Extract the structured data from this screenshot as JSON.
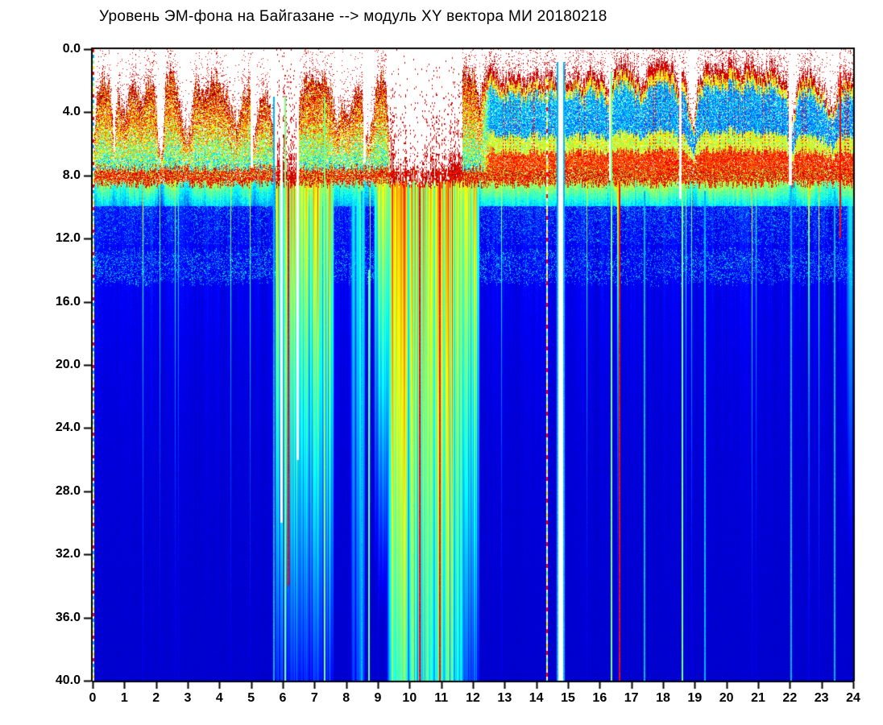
{
  "title": "Уровень ЭМ-фона на Байгазане  -->  модуль XY вектора МИ  20180218",
  "chart_data": {
    "type": "heatmap",
    "title": "Уровень ЭМ-фона на Байгазане  -->  модуль XY вектора МИ  20180218",
    "station": "Байгазан",
    "date_label": "20180218",
    "colormap": "jet",
    "background": "#ffffff",
    "x_axis": {
      "range": [
        0,
        24
      ],
      "tick_step": 1,
      "ticks": [
        "0",
        "1",
        "2",
        "3",
        "4",
        "5",
        "6",
        "7",
        "8",
        "9",
        "10",
        "11",
        "12",
        "13",
        "14",
        "15",
        "16",
        "17",
        "18",
        "19",
        "20",
        "21",
        "22",
        "23",
        "24"
      ]
    },
    "y_axis": {
      "range": [
        0,
        40
      ],
      "tick_step": 4,
      "ticks": [
        "0.0",
        "4.0",
        "8.0",
        "12.0",
        "16.0",
        "20.0",
        "24.0",
        "28.0",
        "32.0",
        "36.0",
        "40.0"
      ]
    },
    "features": {
      "surface_band_top": 7.55,
      "surface_band_bottom": 8.55,
      "env_profile": [
        [
          0,
          8.2
        ],
        [
          0.12,
          3.5
        ],
        [
          0.3,
          2.0
        ],
        [
          0.55,
          2.5
        ],
        [
          0.68,
          5.5
        ],
        [
          0.8,
          3.0
        ],
        [
          1.0,
          4.2
        ],
        [
          1.25,
          2.2
        ],
        [
          1.55,
          3.2
        ],
        [
          1.8,
          2.0
        ],
        [
          2.0,
          3.0
        ],
        [
          2.08,
          6.5
        ],
        [
          2.2,
          6.8
        ],
        [
          2.3,
          2.2
        ],
        [
          2.6,
          1.7
        ],
        [
          2.85,
          4.8
        ],
        [
          3.05,
          5.2
        ],
        [
          3.25,
          2.2
        ],
        [
          3.6,
          2.6
        ],
        [
          3.9,
          1.9
        ],
        [
          4.2,
          2.8
        ],
        [
          4.55,
          4.6
        ],
        [
          4.75,
          3.0
        ],
        [
          4.95,
          2.2
        ],
        [
          5.1,
          5.8
        ],
        [
          5.3,
          2.6
        ],
        [
          5.55,
          3.2
        ],
        [
          5.75,
          6.2
        ],
        [
          5.85,
          6.6
        ],
        [
          6.4,
          6.4
        ],
        [
          6.55,
          2.8
        ],
        [
          6.8,
          1.8
        ],
        [
          7.1,
          2.2
        ],
        [
          7.35,
          1.6
        ],
        [
          7.55,
          3.0
        ],
        [
          7.7,
          4.6
        ],
        [
          7.9,
          3.4
        ],
        [
          8.15,
          4.2
        ],
        [
          8.3,
          2.2
        ],
        [
          8.5,
          3.0
        ],
        [
          8.62,
          5.6
        ],
        [
          8.8,
          5.2
        ],
        [
          9.0,
          2.0
        ],
        [
          9.25,
          1.6
        ],
        [
          9.4,
          7.0
        ],
        [
          9.6,
          7.4
        ],
        [
          10.2,
          6.8
        ],
        [
          10.5,
          5.8
        ],
        [
          10.8,
          6.2
        ],
        [
          11.1,
          5.4
        ],
        [
          11.35,
          4.6
        ],
        [
          11.55,
          2.6
        ],
        [
          11.7,
          1.2
        ],
        [
          12.1,
          1.6
        ],
        [
          12.2,
          3.6
        ],
        [
          12.35,
          1.8
        ],
        [
          12.6,
          1.4
        ],
        [
          13.0,
          2.2
        ],
        [
          13.3,
          1.6
        ],
        [
          13.6,
          2.4
        ],
        [
          13.9,
          1.6
        ],
        [
          14.2,
          2.0
        ],
        [
          14.45,
          1.4
        ],
        [
          14.68,
          2.2
        ],
        [
          14.78,
          8.2
        ],
        [
          14.9,
          2.0
        ],
        [
          15.2,
          1.5
        ],
        [
          15.5,
          2.2
        ],
        [
          15.8,
          1.4
        ],
        [
          16.1,
          2.0
        ],
        [
          16.3,
          3.2
        ],
        [
          16.45,
          1.2
        ],
        [
          16.8,
          0.9
        ],
        [
          17.1,
          1.6
        ],
        [
          17.35,
          2.6
        ],
        [
          17.6,
          1.1
        ],
        [
          18.0,
          0.8
        ],
        [
          18.3,
          1.3
        ],
        [
          18.5,
          2.4
        ],
        [
          18.65,
          1.6
        ],
        [
          18.85,
          3.8
        ],
        [
          19.0,
          4.6
        ],
        [
          19.15,
          1.8
        ],
        [
          19.4,
          1.0
        ],
        [
          19.8,
          1.4
        ],
        [
          20.1,
          0.9
        ],
        [
          20.5,
          1.3
        ],
        [
          20.8,
          0.8
        ],
        [
          21.1,
          1.5
        ],
        [
          21.4,
          1.1
        ],
        [
          21.7,
          1.6
        ],
        [
          21.95,
          2.8
        ],
        [
          22.1,
          5.0
        ],
        [
          22.25,
          2.0
        ],
        [
          22.6,
          1.6
        ],
        [
          22.9,
          2.2
        ],
        [
          23.15,
          2.8
        ],
        [
          23.35,
          4.2
        ],
        [
          23.55,
          2.0
        ],
        [
          23.8,
          1.6
        ],
        [
          24.0,
          2.2
        ]
      ],
      "blue_core_profile": [
        [
          0,
          0
        ],
        [
          12.25,
          0
        ],
        [
          12.55,
          0.85
        ],
        [
          24,
          0.9
        ]
      ],
      "midband_12_15_profile": [
        [
          0,
          0.8
        ],
        [
          1.9,
          0.85
        ],
        [
          2.2,
          0.45
        ],
        [
          3,
          0.8
        ],
        [
          5.5,
          0.8
        ],
        [
          7,
          0.45
        ],
        [
          8.8,
          0.9
        ],
        [
          9.35,
          0.9
        ],
        [
          9.5,
          0
        ],
        [
          11.7,
          0
        ],
        [
          12.1,
          0.85
        ],
        [
          14,
          0.7
        ],
        [
          15,
          0.65
        ],
        [
          17,
          0.5
        ],
        [
          19,
          0.6
        ],
        [
          19.6,
          0.85
        ],
        [
          20.4,
          0.85
        ],
        [
          21.2,
          0.45
        ],
        [
          22.3,
          0.6
        ],
        [
          23,
          0.7
        ],
        [
          24,
          0.75
        ]
      ],
      "storm_top_intervals": [
        [
          5.8,
          6.44
        ],
        [
          9.38,
          11.66
        ]
      ],
      "deep_disturbances": [
        [
          5.82,
          6.45,
          0.95,
          0.022
        ],
        [
          6.5,
          7.55,
          0.9,
          0.022
        ],
        [
          8.2,
          8.55,
          0.55,
          0.015
        ],
        [
          8.95,
          9.38,
          0.85,
          0.03
        ],
        [
          9.38,
          11.66,
          1.0,
          0.0115
        ],
        [
          11.66,
          12.15,
          0.85,
          0.02
        ],
        [
          23.85,
          24.0,
          0.5,
          0.03
        ]
      ],
      "white_gaps": [
        [
          0.66,
          0.72,
          0.7,
          6.5
        ],
        [
          4.98,
          5.06,
          0.7,
          7.5
        ],
        [
          5.74,
          5.81,
          0.7,
          7.4
        ],
        [
          5.93,
          6.0,
          1.5,
          30
        ],
        [
          6.44,
          6.5,
          1.5,
          26
        ],
        [
          8.55,
          8.62,
          1.0,
          7.2
        ],
        [
          14.7,
          14.86,
          0.7,
          40
        ],
        [
          16.29,
          16.35,
          0.7,
          8.3
        ],
        [
          18.5,
          18.58,
          0.7,
          9.5
        ],
        [
          21.97,
          22.06,
          0.7,
          8.6
        ]
      ],
      "vlines": [
        [
          5.73,
          "cyan",
          3,
          40,
          "solid"
        ],
        [
          6.08,
          "green",
          3,
          40,
          "solid"
        ],
        [
          6.18,
          "red",
          8.4,
          34,
          "solid"
        ],
        [
          7.32,
          "green",
          3,
          40,
          "solid"
        ],
        [
          8.5,
          "cyan",
          9,
          40,
          "solid"
        ],
        [
          8.72,
          "green",
          14,
          40,
          "solid"
        ],
        [
          10.12,
          "green",
          8.4,
          40,
          "solid"
        ],
        [
          10.32,
          "red",
          8.4,
          40,
          "solid"
        ],
        [
          10.55,
          "green",
          8.4,
          40,
          "solid"
        ],
        [
          10.97,
          "red",
          8.4,
          40,
          "solid"
        ],
        [
          14.33,
          "multi",
          1.8,
          40,
          "dashed"
        ],
        [
          14.68,
          "cyan",
          0.8,
          40,
          "solid"
        ],
        [
          14.88,
          "cyan",
          0.8,
          40,
          "solid"
        ],
        [
          16.37,
          "green",
          1.5,
          40,
          "solid"
        ],
        [
          16.62,
          "red",
          8.4,
          40,
          "solid"
        ],
        [
          17.42,
          "cyan",
          9,
          40,
          "solid"
        ],
        [
          18.62,
          "green",
          9.5,
          40,
          "solid"
        ],
        [
          19.32,
          "cyan",
          9,
          40,
          "solid"
        ],
        [
          22.03,
          "cyan",
          8.6,
          40,
          "solid"
        ],
        [
          23.42,
          "cyan",
          9,
          40,
          "solid"
        ],
        [
          23.6,
          "red",
          1.5,
          12,
          "solid"
        ]
      ],
      "left_edge_dashed_rainbow": true
    }
  }
}
